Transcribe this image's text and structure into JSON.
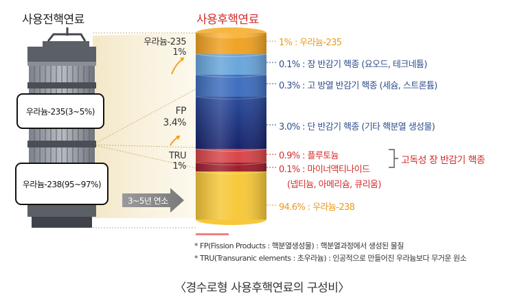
{
  "titles": {
    "fresh_fuel": "사용전핵연료",
    "spent_fuel": "사용후핵연료"
  },
  "fresh_fuel": {
    "u235_box": "우라늄-235(3~5%)",
    "u238_box": "우라늄-238(95~97%)",
    "arrow_label": "3~5년 연소"
  },
  "cylinder_labels": {
    "u235_name": "우라늄-235",
    "u235_pct": "1%",
    "fp_name": "FP",
    "fp_pct": "3.4%",
    "tru_name": "TRU",
    "tru_pct": "1%"
  },
  "annotations": {
    "u235": "1% : 우라늄-235",
    "short_fp": "0.1% : 장 반감기 핵종 (요오드, 테크네튬)",
    "heat_fp": "0.3% : 고 방열 반감기 핵종 (세슘, 스트론튬)",
    "short_half_fp": "3.0% : 단 반감기 핵종 (기타 핵분열 생성물)",
    "plutonium": "0.9% : 플루토늄",
    "minor_actinide": "0.1% : 마이너액티나이드",
    "minor_actinide_detail": "(넵티늄, 아메리슘, 큐리움)",
    "group_label": "고독성 장 반감기 핵종",
    "u238": "94.6% : 우라늄-238"
  },
  "footnotes": {
    "fp": "* FP(Fission Products : 핵분열생성물) : 핵분열과정에서 생성된 물질",
    "tru": "* TRU(Transuranic elements : 초우라늄) : 인공적으로 만들어진 우라늄보다 무거운 원소"
  },
  "caption": "〈경수로형 사용후핵연료의 구성비〉",
  "colors": {
    "u235": "#f0a224",
    "fp_light": "#6aa6dc",
    "fp_mid": "#3f6fbf",
    "fp_dark": "#1d2f7a",
    "plutonium": "#d8464a",
    "minor_actinide": "#9e1f2c",
    "u238": "#f6c83a",
    "accent_red": "#d42b2b"
  }
}
